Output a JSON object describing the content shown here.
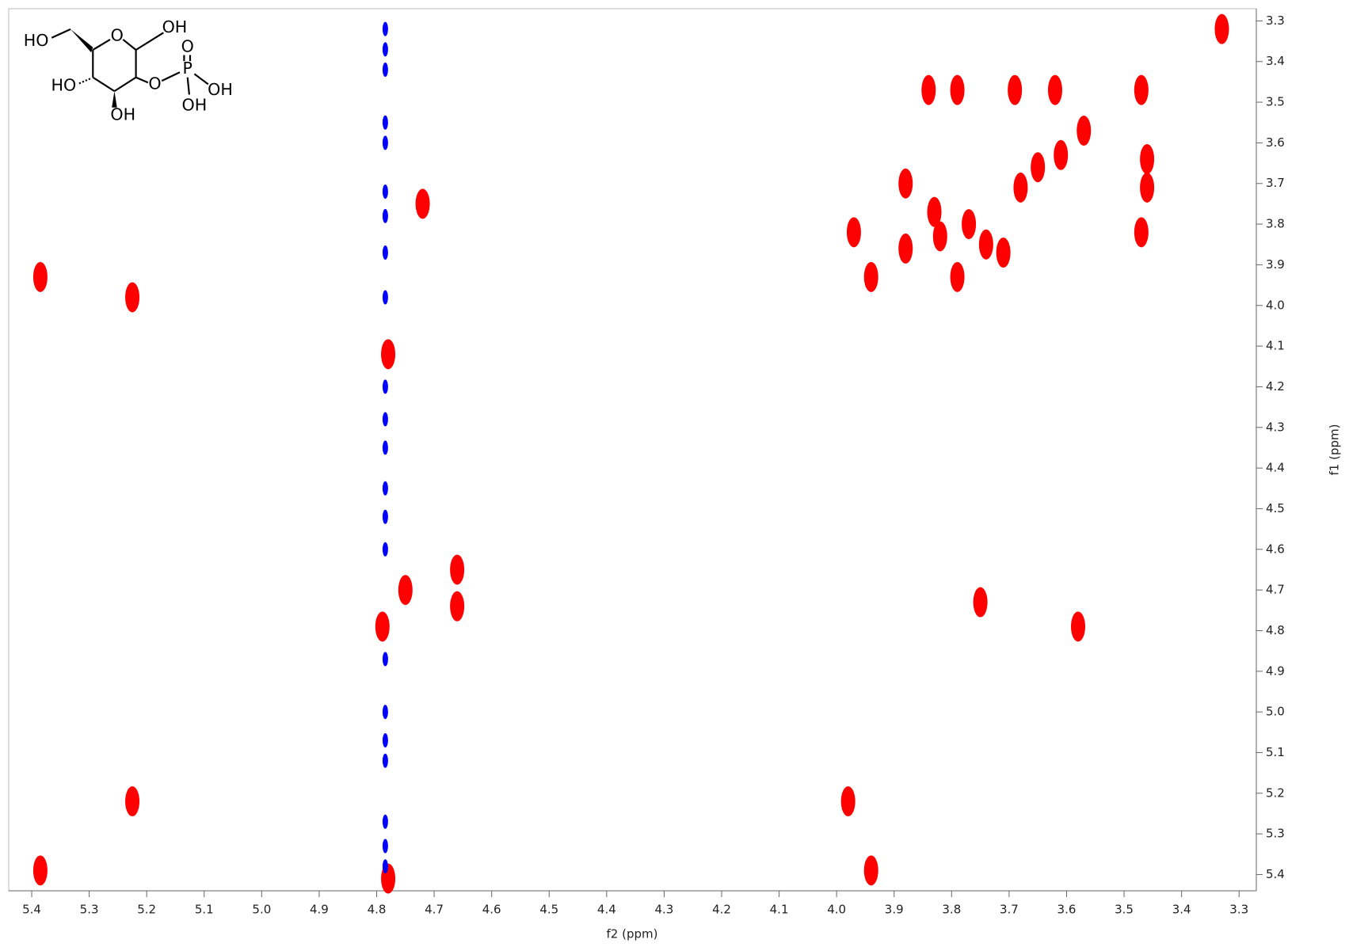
{
  "chart_data": {
    "type": "scatter",
    "xlabel": "f2 (ppm)",
    "ylabel": "f1 (ppm)",
    "xlim": [
      5.44,
      3.27
    ],
    "ylim": [
      3.27,
      5.44
    ],
    "xticks": [
      5.4,
      5.3,
      5.2,
      5.1,
      {
        "value": 5.0,
        "label": "5.0"
      },
      4.9,
      4.8,
      4.7,
      4.6,
      4.5,
      4.4,
      4.3,
      4.2,
      4.1,
      {
        "value": 4.0,
        "label": "4.0"
      },
      3.9,
      3.8,
      3.7,
      3.6,
      3.5,
      3.4,
      3.3
    ],
    "yticks": [
      3.3,
      3.4,
      3.5,
      3.6,
      3.7,
      3.8,
      3.9,
      {
        "value": 4.0,
        "label": "4.0"
      },
      4.1,
      4.2,
      4.3,
      4.4,
      4.5,
      4.6,
      4.7,
      4.8,
      4.9,
      {
        "value": 5.0,
        "label": "5.0"
      },
      5.1,
      5.2,
      5.3,
      5.4
    ],
    "series": [
      {
        "color": "#ff0000",
        "x": [
          5.385,
          5.385,
          5.225,
          5.225,
          4.79,
          4.78,
          4.72,
          4.66,
          4.66,
          4.75,
          4.78,
          3.33,
          3.94,
          3.98,
          3.75,
          3.58,
          3.84,
          3.79,
          3.69,
          3.62,
          3.47,
          3.57,
          3.46,
          3.46,
          3.47,
          3.88,
          3.83,
          3.82,
          3.77,
          3.74,
          3.71,
          3.88,
          3.94,
          3.97,
          3.79,
          3.68,
          3.65,
          3.61
        ],
        "values": [
          3.93,
          5.39,
          5.22,
          3.98,
          4.79,
          5.41,
          3.75,
          4.65,
          4.74,
          4.7,
          4.12,
          3.32,
          5.39,
          5.22,
          4.73,
          4.79,
          3.47,
          3.47,
          3.47,
          3.47,
          3.47,
          3.57,
          3.64,
          3.71,
          3.82,
          3.7,
          3.77,
          3.83,
          3.8,
          3.85,
          3.87,
          3.86,
          3.93,
          3.82,
          3.93,
          3.71,
          3.66,
          3.63
        ]
      },
      {
        "color": "#0000ff",
        "x": [
          4.785,
          4.785,
          4.785,
          4.785,
          4.785,
          4.785,
          4.785,
          4.785,
          4.785,
          4.785,
          4.785,
          4.785,
          4.785,
          4.785,
          4.785,
          4.785,
          4.785,
          4.785,
          4.785,
          4.785,
          4.785,
          4.785
        ],
        "values": [
          3.32,
          3.37,
          3.42,
          3.55,
          3.6,
          3.72,
          3.78,
          3.87,
          3.98,
          4.2,
          4.28,
          4.35,
          4.45,
          4.52,
          4.6,
          4.87,
          5.0,
          5.07,
          5.12,
          5.27,
          5.33,
          5.38
        ]
      }
    ],
    "annotations": [
      "HO",
      "O",
      "OH",
      "HO",
      "O",
      "P",
      "O",
      "OH",
      "OH",
      "OH"
    ]
  }
}
